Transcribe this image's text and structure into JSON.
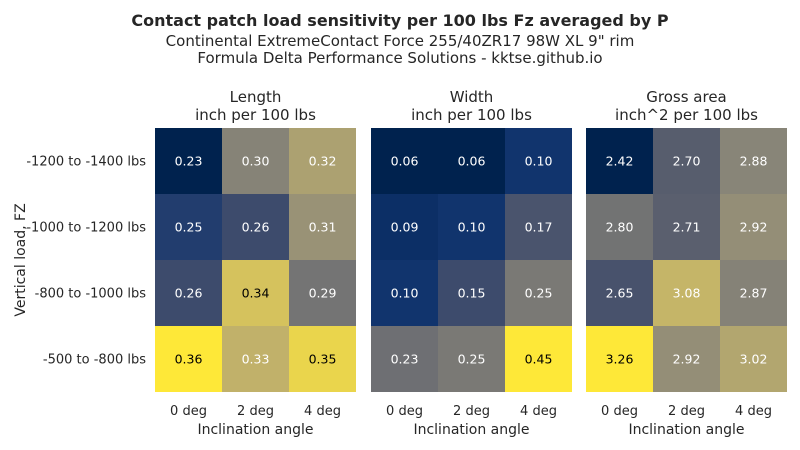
{
  "header": {
    "title": "Contact patch load sensitivity per 100 lbs Fz averaged by P",
    "subtitle_1": "Continental ExtremeContact Force 255/40ZR17 98W XL 9\" rim",
    "subtitle_2": "Formula Delta Performance Solutions - kktse.github.io"
  },
  "colormap": {
    "name": "cividis",
    "stops": [
      "#00224e",
      "#123570",
      "#3b496c",
      "#575d6d",
      "#707173",
      "#8a8678",
      "#a59c74",
      "#c3b369",
      "#e1cc55",
      "#fee838"
    ]
  },
  "chart_data": [
    {
      "type": "heatmap",
      "title": "Length",
      "unit": "inch per 100 lbs",
      "xlabel": "Inclination angle",
      "ylabel": "Vertical load, FZ",
      "x": [
        "0 deg",
        "2 deg",
        "4 deg"
      ],
      "y": [
        "-1200 to -1400 lbs",
        "-1000 to -1200 lbs",
        "-800 to -1000 lbs",
        "-500 to -800 lbs"
      ],
      "values": [
        [
          0.23,
          0.3,
          0.32
        ],
        [
          0.25,
          0.26,
          0.31
        ],
        [
          0.26,
          0.34,
          0.29
        ],
        [
          0.36,
          0.33,
          0.35
        ]
      ],
      "labels": [
        [
          "0.23",
          "0.30",
          "0.32"
        ],
        [
          "0.25",
          "0.26",
          "0.31"
        ],
        [
          "0.26",
          "0.34",
          "0.29"
        ],
        [
          "0.36",
          "0.33",
          "0.35"
        ]
      ]
    },
    {
      "type": "heatmap",
      "title": "Width",
      "unit": "inch per 100 lbs",
      "xlabel": "Inclination angle",
      "x": [
        "0 deg",
        "2 deg",
        "4 deg"
      ],
      "values": [
        [
          0.06,
          0.06,
          0.1
        ],
        [
          0.09,
          0.1,
          0.17
        ],
        [
          0.1,
          0.15,
          0.25
        ],
        [
          0.23,
          0.25,
          0.45
        ]
      ],
      "labels": [
        [
          "0.06",
          "0.06",
          "0.10"
        ],
        [
          "0.09",
          "0.10",
          "0.17"
        ],
        [
          "0.10",
          "0.15",
          "0.25"
        ],
        [
          "0.23",
          "0.25",
          "0.45"
        ]
      ]
    },
    {
      "type": "heatmap",
      "title": "Gross area",
      "unit": "inch^2 per 100 lbs",
      "xlabel": "Inclination angle",
      "x": [
        "0 deg",
        "2 deg",
        "4 deg"
      ],
      "values": [
        [
          2.42,
          2.7,
          2.88
        ],
        [
          2.8,
          2.71,
          2.92
        ],
        [
          2.65,
          3.08,
          2.87
        ],
        [
          3.26,
          2.92,
          3.02
        ]
      ],
      "labels": [
        [
          "2.42",
          "2.70",
          "2.88"
        ],
        [
          "2.80",
          "2.71",
          "2.92"
        ],
        [
          "2.65",
          "3.08",
          "2.87"
        ],
        [
          "3.26",
          "2.92",
          "3.02"
        ]
      ]
    }
  ]
}
